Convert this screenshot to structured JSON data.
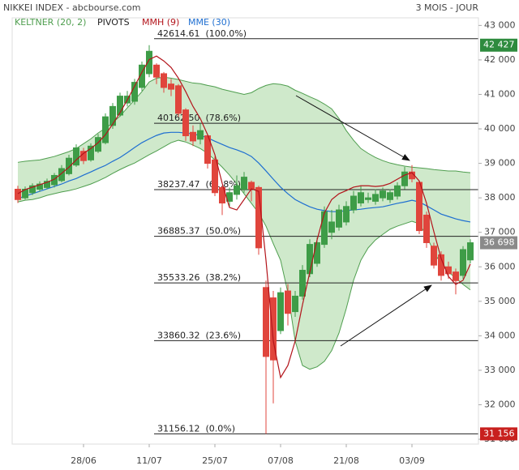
{
  "chart_data": {
    "type": "candlestick",
    "title": "NIKKEI INDEX - abcbourse.com",
    "subtitle": "3 MOIS - JOUR",
    "categories": [
      null,
      null,
      null,
      null,
      null,
      null,
      null,
      null,
      null,
      "28/06",
      null,
      null,
      null,
      null,
      null,
      null,
      null,
      null,
      "11/07",
      null,
      null,
      null,
      null,
      null,
      null,
      null,
      null,
      "25/07",
      null,
      null,
      null,
      null,
      null,
      null,
      null,
      null,
      "07/08",
      null,
      null,
      null,
      null,
      null,
      null,
      null,
      null,
      "21/08",
      null,
      null,
      null,
      null,
      null,
      null,
      null,
      null,
      "03/09",
      null,
      null,
      null,
      null,
      null,
      null,
      null,
      null
    ],
    "open": [
      38250,
      38000,
      38150,
      38250,
      38300,
      38380,
      38500,
      38700,
      38950,
      39350,
      39100,
      39350,
      39600,
      40100,
      40400,
      40750,
      40800,
      41200,
      41600,
      41850,
      41600,
      41300,
      41250,
      40550,
      39900,
      39700,
      39800,
      39100,
      38300,
      37900,
      38100,
      38250,
      38450,
      38300,
      35400,
      35100,
      34150,
      35300,
      34700,
      35150,
      35800,
      36100,
      36650,
      37000,
      37150,
      37300,
      37650,
      37850,
      37950,
      37900,
      38000,
      37950,
      38050,
      38350,
      38750,
      38450,
      37500,
      36600,
      36350,
      36000,
      35850,
      35750,
      36200
    ],
    "high": [
      38350,
      38330,
      38420,
      38480,
      38560,
      38720,
      38950,
      39250,
      39550,
      39450,
      39580,
      39850,
      40450,
      40750,
      41050,
      41100,
      41450,
      41950,
      42427,
      41900,
      41650,
      41450,
      41300,
      40600,
      40100,
      40150,
      39850,
      39200,
      38350,
      38300,
      38650,
      38750,
      38500,
      38350,
      35600,
      35300,
      35400,
      35500,
      35300,
      36050,
      36800,
      36850,
      37750,
      37650,
      37800,
      37900,
      38200,
      38350,
      38150,
      38250,
      38300,
      38250,
      38450,
      38900,
      38950,
      38500,
      37600,
      36700,
      36450,
      36150,
      35950,
      36600,
      36800
    ],
    "low": [
      37850,
      37950,
      38080,
      38180,
      38250,
      38300,
      38450,
      38650,
      38900,
      38980,
      39050,
      39300,
      39550,
      40000,
      40350,
      40650,
      40700,
      41100,
      41500,
      41300,
      41050,
      40950,
      40350,
      39650,
      39500,
      39550,
      38850,
      38050,
      37500,
      37750,
      37950,
      38150,
      37900,
      36350,
      31156,
      32040,
      34050,
      34300,
      34550,
      35050,
      35700,
      36000,
      36550,
      36800,
      37050,
      37200,
      37550,
      37750,
      37850,
      37800,
      37900,
      37850,
      37950,
      38250,
      38450,
      36950,
      36550,
      35950,
      35600,
      35650,
      35200,
      35650,
      36100
    ],
    "close": [
      37950,
      38250,
      38350,
      38400,
      38480,
      38650,
      38850,
      39150,
      39450,
      39080,
      39500,
      39750,
      40350,
      40650,
      40950,
      40950,
      41350,
      41850,
      42250,
      41500,
      41200,
      41150,
      40450,
      39800,
      39650,
      39950,
      39000,
      38150,
      37850,
      38150,
      38350,
      38600,
      38250,
      36550,
      33400,
      33300,
      35250,
      34650,
      35150,
      35900,
      36650,
      36700,
      37600,
      37300,
      37650,
      37750,
      38050,
      38150,
      38000,
      38100,
      38200,
      38150,
      38350,
      38750,
      38550,
      37050,
      36700,
      36050,
      35750,
      35800,
      35600,
      36500,
      36698
    ],
    "up_color": "#3e9c47",
    "down_color": "#e0453c",
    "bands": {
      "name": "KELTNER (20, 2)",
      "color": "#4f9e4f",
      "fill": "#cfe9cb",
      "upper": [
        39030,
        39060,
        39080,
        39100,
        39150,
        39200,
        39270,
        39340,
        39430,
        39570,
        39710,
        39880,
        40020,
        40180,
        40370,
        40610,
        40840,
        41080,
        41360,
        41470,
        41500,
        41470,
        41430,
        41380,
        41330,
        41310,
        41260,
        41220,
        41150,
        41100,
        41050,
        41000,
        41050,
        41170,
        41260,
        41310,
        41290,
        41240,
        41120,
        41030,
        40930,
        40840,
        40720,
        40580,
        40300,
        39950,
        39670,
        39430,
        39290,
        39170,
        39080,
        39010,
        38960,
        38920,
        38890,
        38870,
        38850,
        38820,
        38800,
        38780,
        38780,
        38750,
        38730
      ],
      "lower": [
        37880,
        37930,
        37950,
        38000,
        38070,
        38120,
        38170,
        38210,
        38260,
        38330,
        38400,
        38490,
        38590,
        38710,
        38820,
        38920,
        39010,
        39130,
        39250,
        39360,
        39480,
        39600,
        39670,
        39620,
        39530,
        39430,
        39290,
        39100,
        38890,
        38660,
        38400,
        38120,
        37840,
        37560,
        37180,
        36670,
        36190,
        35250,
        33850,
        33140,
        33030,
        33100,
        33260,
        33570,
        34080,
        34790,
        35610,
        36190,
        36550,
        36780,
        36940,
        37090,
        37180,
        37250,
        37320,
        37250,
        36900,
        36430,
        36080,
        35840,
        35680,
        35490,
        35330
      ]
    },
    "pivots": {
      "name": "PIVOTS",
      "color": "#222222",
      "levels": [
        {
          "value": 42614.61,
          "label": "42614.61  (100.0%)"
        },
        {
          "value": 40162.5,
          "label": "40162.50  (78.6%)"
        },
        {
          "value": 38237.47,
          "label": "38237.47  (61.8%)"
        },
        {
          "value": 36885.37,
          "label": "36885.37  (50.0%)"
        },
        {
          "value": 35533.26,
          "label": "35533.26  (38.2%)"
        },
        {
          "value": 33860.32,
          "label": "33860.32  (23.6%)"
        },
        {
          "value": 31156.12,
          "label": "31156.12  (0.0%)"
        }
      ]
    },
    "series": [
      {
        "name": "MMH (9)",
        "color": "#b3141b",
        "values": [
          38120,
          38240,
          38310,
          38380,
          38450,
          38540,
          38710,
          38890,
          39100,
          39290,
          39430,
          39600,
          39830,
          40140,
          40470,
          40840,
          41240,
          41640,
          42010,
          42110,
          41970,
          41780,
          41470,
          41080,
          40650,
          40300,
          39830,
          39250,
          38420,
          37720,
          37650,
          37950,
          38260,
          38190,
          36190,
          33850,
          32790,
          33140,
          33850,
          34900,
          35840,
          36780,
          37560,
          37950,
          38120,
          38210,
          38310,
          38350,
          38350,
          38330,
          38350,
          38420,
          38540,
          38660,
          38730,
          38490,
          37840,
          37020,
          36240,
          35720,
          35490,
          35610,
          36080
        ]
      },
      {
        "name": "MME (30)",
        "color": "#1f6fd1",
        "values": [
          37980,
          38050,
          38120,
          38190,
          38260,
          38330,
          38400,
          38490,
          38560,
          38660,
          38750,
          38850,
          38940,
          39060,
          39170,
          39310,
          39460,
          39600,
          39710,
          39810,
          39880,
          39900,
          39900,
          39880,
          39850,
          39810,
          39740,
          39640,
          39550,
          39460,
          39390,
          39310,
          39200,
          39010,
          38780,
          38540,
          38310,
          38120,
          37950,
          37840,
          37740,
          37670,
          37630,
          37600,
          37600,
          37630,
          37650,
          37670,
          37700,
          37720,
          37740,
          37790,
          37840,
          37880,
          37930,
          37880,
          37770,
          37650,
          37530,
          37460,
          37390,
          37340,
          37300
        ]
      }
    ],
    "markers": [
      {
        "value": 42427,
        "label": "42 427",
        "color": "#2e8b3e"
      },
      {
        "value": 36698,
        "label": "36 698",
        "color": "#8a8a8a"
      },
      {
        "value": 31156,
        "label": "31 156",
        "color": "#c8201e"
      }
    ],
    "ylim": [
      30860,
      43220
    ],
    "yticks": [
      {
        "value": 31000,
        "label": "31 000"
      },
      {
        "value": 32000,
        "label": "32 000"
      },
      {
        "value": 33000,
        "label": "33 000"
      },
      {
        "value": 34000,
        "label": "34 000"
      },
      {
        "value": 35000,
        "label": "35 000"
      },
      {
        "value": 36000,
        "label": "36 000"
      },
      {
        "value": 37000,
        "label": "37 000"
      },
      {
        "value": 38000,
        "label": "38 000"
      },
      {
        "value": 39000,
        "label": "39 000"
      },
      {
        "value": 40000,
        "label": "40 000"
      },
      {
        "value": 41000,
        "label": "41 000"
      },
      {
        "value": 42000,
        "label": "42 000"
      },
      {
        "value": 43000,
        "label": "43 000"
      }
    ],
    "grid": false
  }
}
